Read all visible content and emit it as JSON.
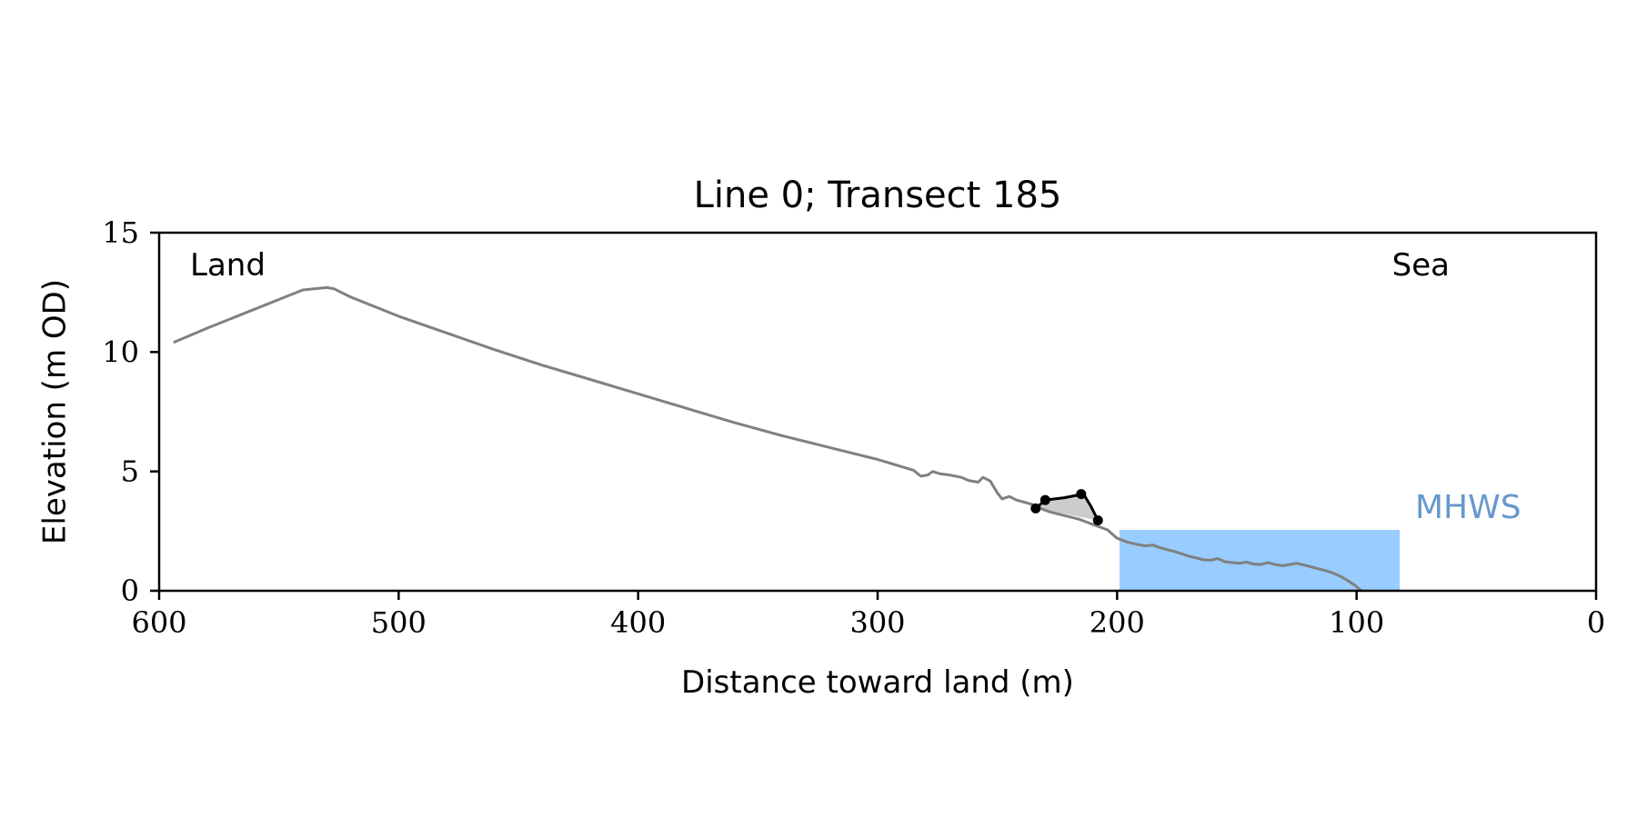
{
  "chart_data": {
    "type": "line",
    "title": "Line 0; Transect 185",
    "xlabel": "Distance toward land (m)",
    "ylabel": "Elevation (m OD)",
    "xlim": [
      600,
      0
    ],
    "ylim": [
      0,
      15
    ],
    "x_ticks": [
      600,
      500,
      400,
      300,
      200,
      100,
      0
    ],
    "y_ticks": [
      0,
      5,
      10,
      15
    ],
    "grid": false,
    "legend": "none",
    "annotations": {
      "land": "Land",
      "sea": "Sea",
      "mhws": "MHWS"
    },
    "colors": {
      "profile": "#808080",
      "highlight": "#000000",
      "shade": "#cccccc",
      "water": "#99ccff",
      "mhws_text": "#6699cc"
    },
    "water_region": {
      "x_start": 199,
      "x_end": 82,
      "level": 2.55
    },
    "series": [
      {
        "x": [
          594,
          580,
          565,
          550,
          540,
          530,
          527,
          520,
          510,
          500,
          480,
          460,
          440,
          420,
          400,
          380,
          360,
          340,
          320,
          300,
          290,
          285,
          282,
          279,
          277,
          274,
          270,
          265,
          262,
          258,
          256,
          253,
          250,
          248,
          245,
          242,
          239,
          235,
          232,
          228,
          224,
          220,
          216,
          212,
          208,
          204,
          200,
          196,
          192,
          188,
          185,
          182,
          179,
          176,
          173,
          170,
          167,
          164,
          161,
          158,
          155,
          152,
          149,
          146,
          143,
          140,
          137,
          134,
          131,
          128,
          125,
          122,
          119,
          116,
          113,
          110,
          107,
          104,
          101,
          98
        ],
        "y": [
          10.4,
          11.0,
          11.6,
          12.2,
          12.6,
          12.7,
          12.65,
          12.3,
          11.9,
          11.5,
          10.8,
          10.1,
          9.45,
          8.85,
          8.25,
          7.65,
          7.05,
          6.5,
          6.0,
          5.5,
          5.2,
          5.05,
          4.8,
          4.85,
          5.0,
          4.9,
          4.85,
          4.75,
          4.62,
          4.55,
          4.75,
          4.6,
          4.1,
          3.85,
          3.95,
          3.8,
          3.72,
          3.6,
          3.45,
          3.3,
          3.2,
          3.1,
          3.0,
          2.85,
          2.7,
          2.55,
          2.2,
          2.05,
          1.95,
          1.88,
          1.92,
          1.8,
          1.72,
          1.65,
          1.55,
          1.45,
          1.38,
          1.3,
          1.28,
          1.35,
          1.22,
          1.18,
          1.15,
          1.2,
          1.12,
          1.1,
          1.18,
          1.1,
          1.05,
          1.1,
          1.15,
          1.08,
          1.0,
          0.92,
          0.85,
          0.75,
          0.62,
          0.45,
          0.25,
          0.0
        ]
      },
      {
        "x": [
          234,
          230,
          226,
          222,
          218,
          214,
          211,
          208
        ],
        "y": [
          3.45,
          3.8,
          3.85,
          3.9,
          3.98,
          4.05,
          3.55,
          2.95
        ],
        "markers": [
          [
            234,
            3.45
          ],
          [
            230,
            3.8
          ],
          [
            215,
            4.05
          ],
          [
            208,
            2.95
          ]
        ]
      }
    ]
  }
}
